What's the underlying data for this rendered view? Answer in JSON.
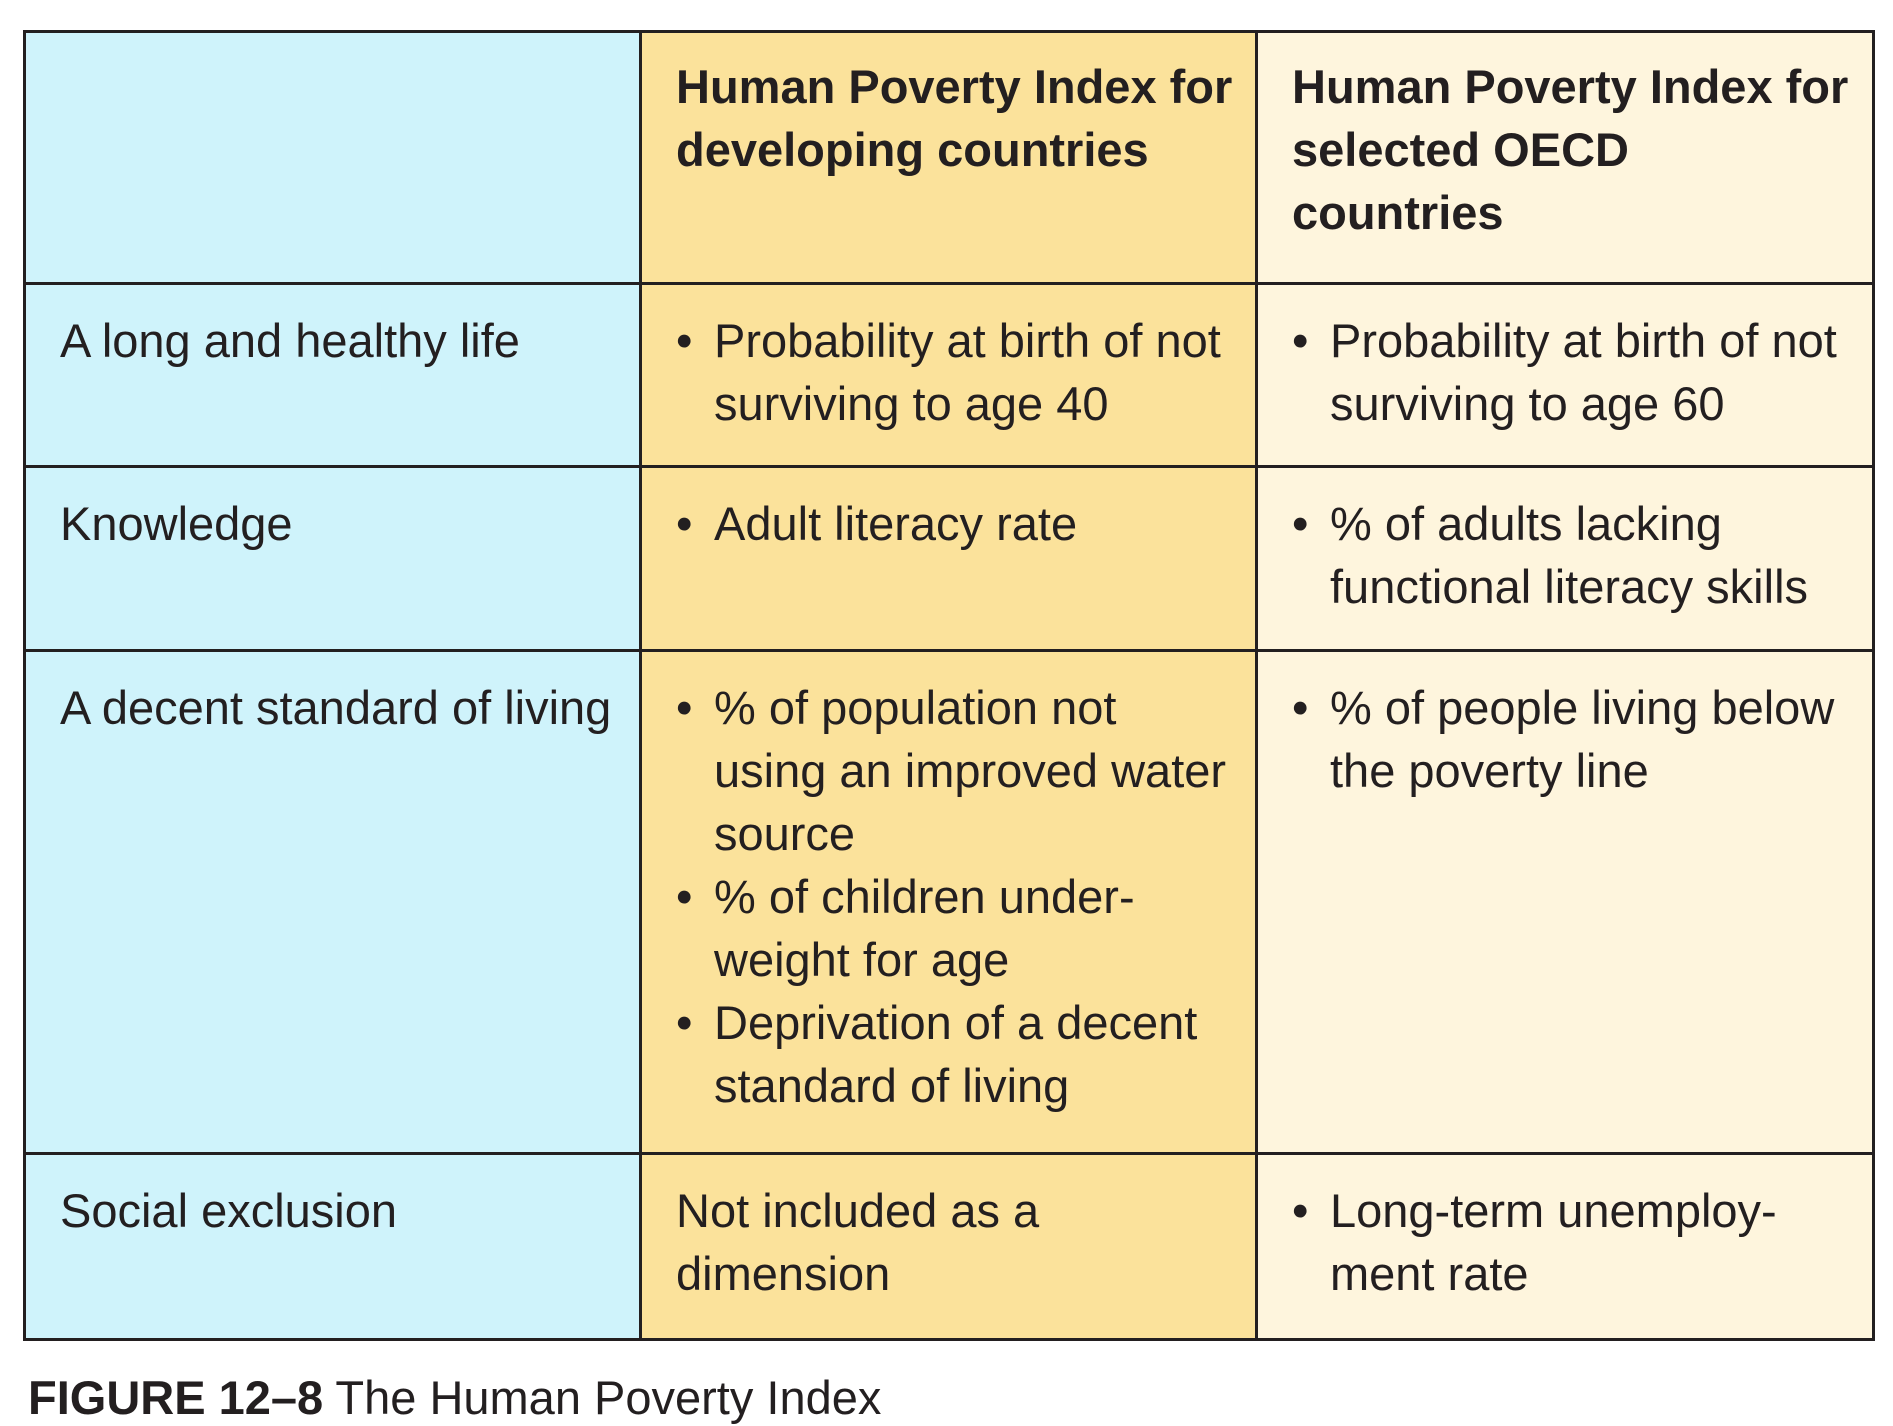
{
  "table": {
    "headers": [
      "",
      "Human Poverty Index for developing countries",
      "Human Poverty Index for selected OECD countries"
    ],
    "rows": [
      {
        "dimension": "A long and healthy life",
        "developing": [
          "Probability at birth of not surviving to age 40"
        ],
        "oecd": [
          "Probability at birth of not surviving to age 60"
        ]
      },
      {
        "dimension": "Knowledge",
        "developing": [
          "Adult literacy rate"
        ],
        "oecd": [
          "% of adults lacking functional literacy skills"
        ]
      },
      {
        "dimension": "A decent standard of living",
        "developing": [
          "% of population not using an improved water source",
          "% of children under-weight for age",
          "Deprivation of a decent standard of living"
        ],
        "oecd": [
          "% of people living below the poverty line"
        ]
      },
      {
        "dimension": "Social exclusion",
        "developing_text": "Not included as a dimension",
        "oecd": [
          "Long-term unemploy-ment rate"
        ]
      }
    ],
    "bullet_symbol": "•"
  },
  "caption": {
    "figure_number": "FIGURE 12–8",
    "title": "The Human Poverty Index"
  },
  "colors": {
    "dimension_column": "#cff3fb",
    "developing_column": "#fbe29b",
    "oecd_column": "#fef5dd",
    "border": "#231f20"
  }
}
